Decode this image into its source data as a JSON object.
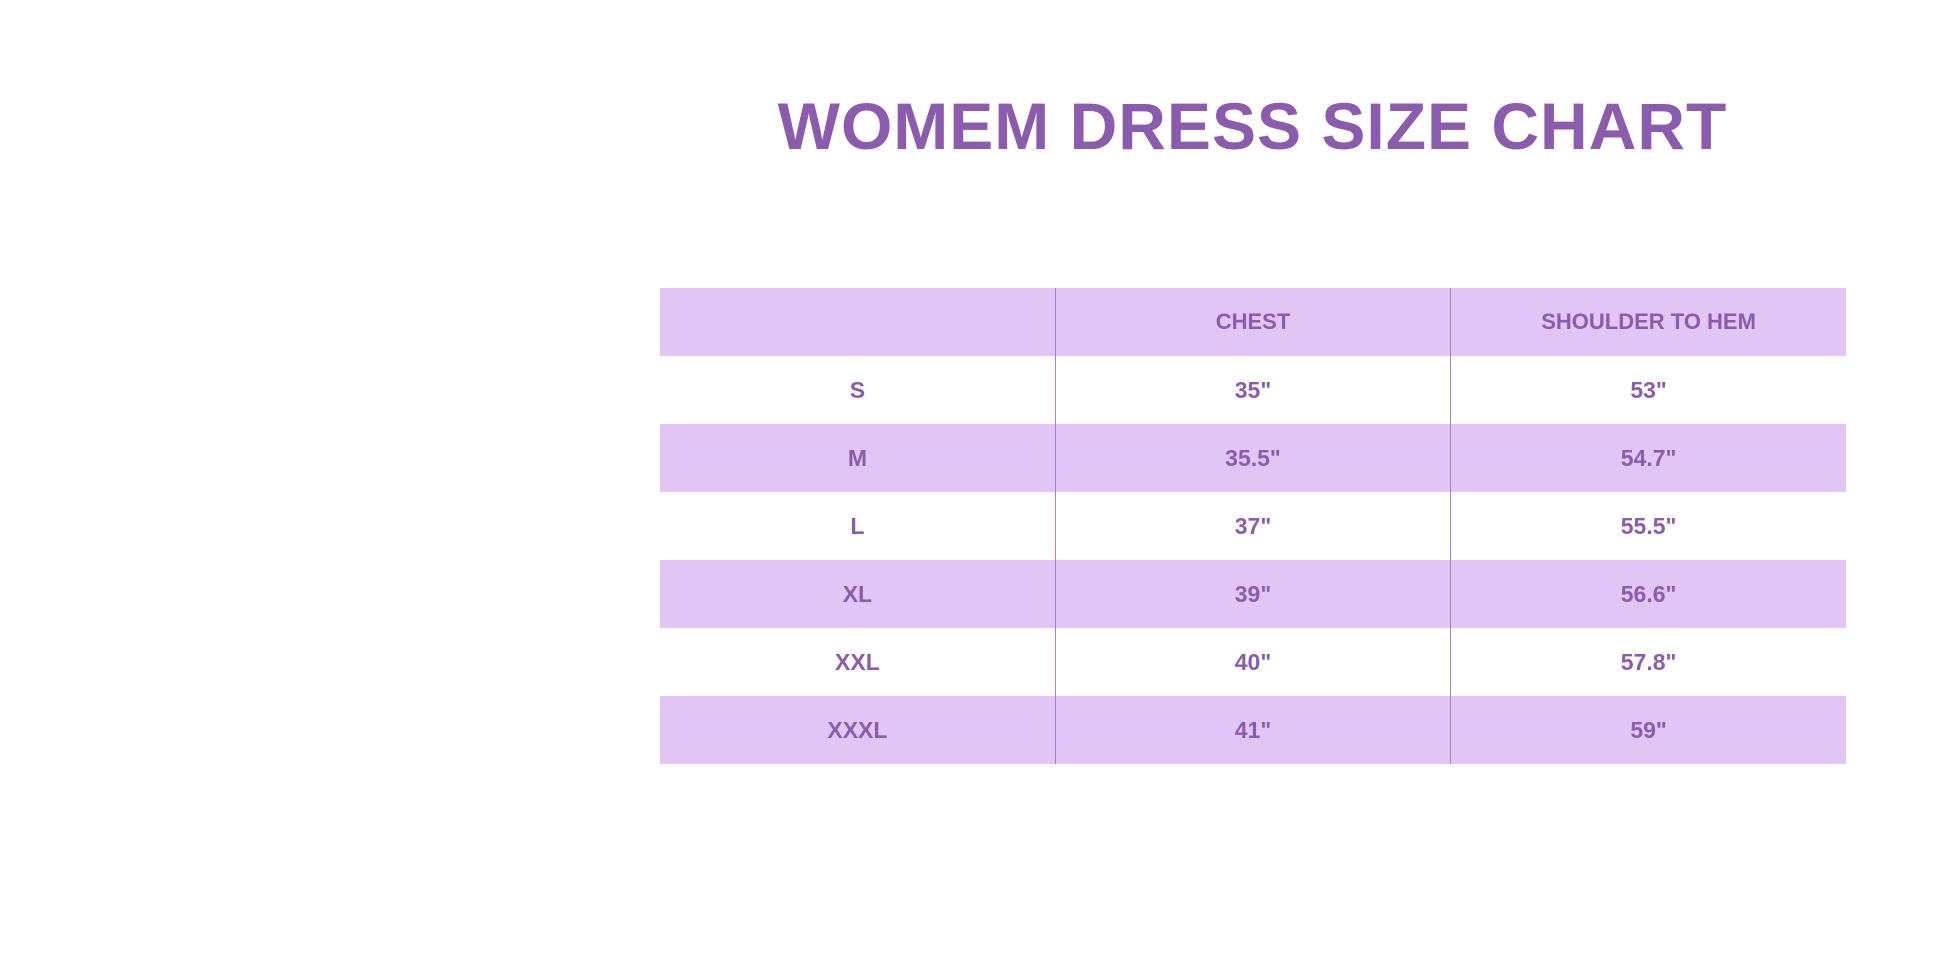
{
  "title": "WOMEM DRESS SIZE CHART",
  "colors": {
    "accent": "#8b5cae",
    "band": "#e1c5f4"
  },
  "table": {
    "headers": [
      "",
      "CHEST",
      "SHOULDER TO HEM"
    ],
    "rows": [
      [
        "S",
        "35\"",
        "53\""
      ],
      [
        "M",
        "35.5\"",
        "54.7\""
      ],
      [
        "L",
        "37\"",
        "55.5\""
      ],
      [
        "XL",
        "39\"",
        "56.6\""
      ],
      [
        "XXL",
        "40\"",
        "57.8\""
      ],
      [
        "XXXL",
        "41\"",
        "59\""
      ]
    ]
  }
}
